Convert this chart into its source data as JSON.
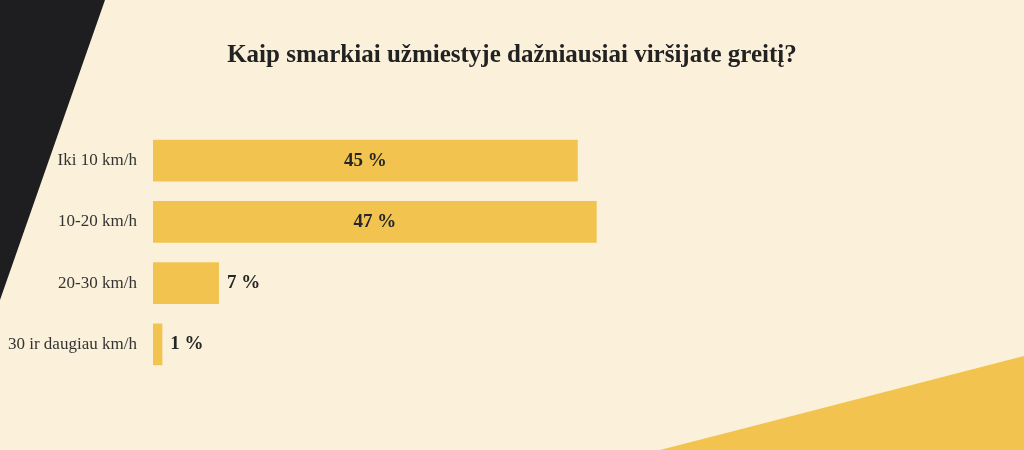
{
  "chart_data": {
    "type": "bar",
    "orientation": "horizontal",
    "title": "Kaip smarkiai užmiestyje dažniausiai viršijate greitį?",
    "categories": [
      "Iki 10 km/h",
      "10-20 km/h",
      "20-30 km/h",
      "30 ir daugiau km/h"
    ],
    "values": [
      45,
      47,
      7,
      1
    ],
    "color": "#f2c44f",
    "value_labels": [
      "45 %",
      "47 %",
      "7 %",
      "1 %"
    ],
    "legend": false,
    "tick_labels": "y"
  }
}
